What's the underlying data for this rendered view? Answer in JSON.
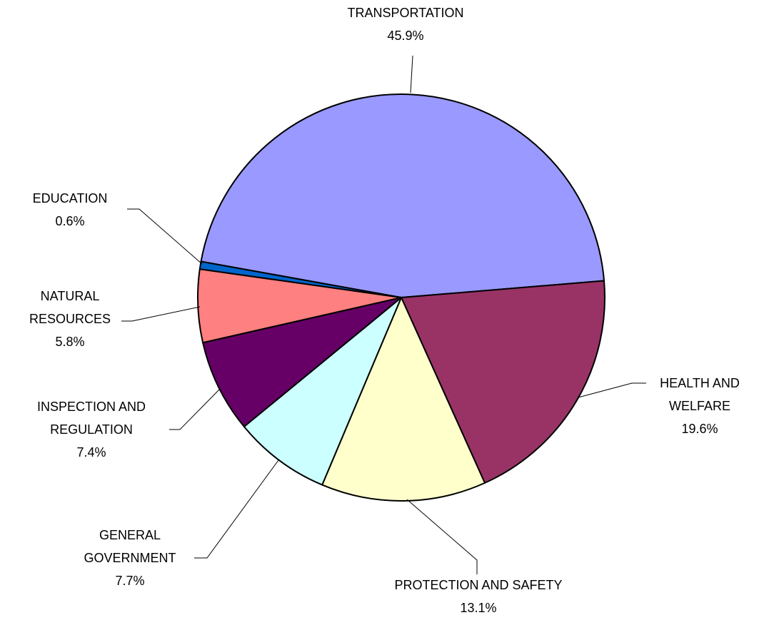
{
  "chart_data": {
    "type": "pie",
    "categories": [
      "TRANSPORTATION",
      "HEALTH AND WELFARE",
      "PROTECTION AND SAFETY",
      "GENERAL GOVERNMENT",
      "INSPECTION AND REGULATION",
      "NATURAL RESOURCES",
      "EDUCATION"
    ],
    "values": [
      45.9,
      19.6,
      13.1,
      7.7,
      7.4,
      5.8,
      0.6
    ],
    "value_labels": [
      "45.9%",
      "19.6%",
      "13.1%",
      "7.7%",
      "7.4%",
      "5.8%",
      "0.6%"
    ],
    "colors": [
      "#9999ff",
      "#993366",
      "#ffffcc",
      "#ccffff",
      "#660066",
      "#ff8080",
      "#0066cc"
    ]
  }
}
